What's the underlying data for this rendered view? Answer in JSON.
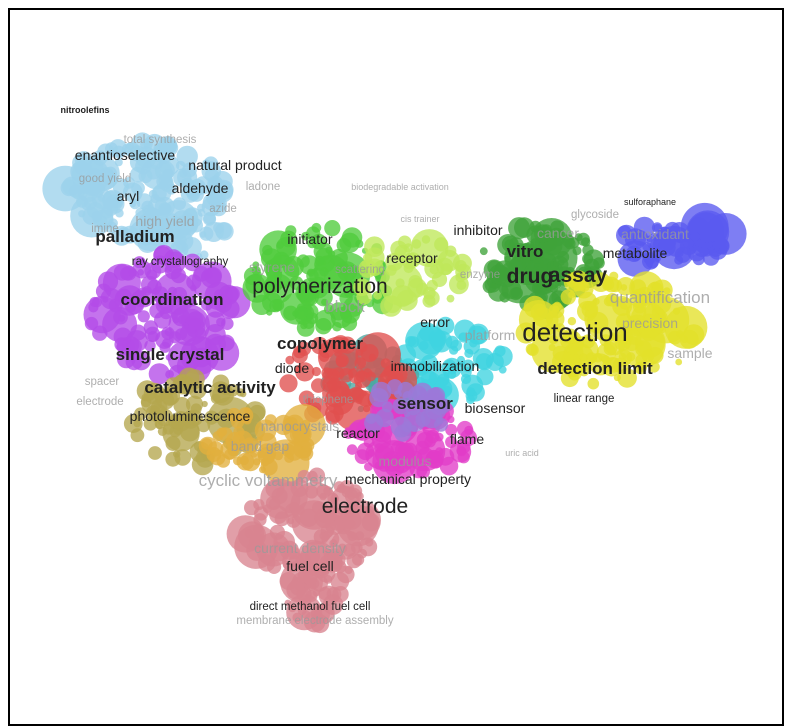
{
  "palette": {
    "light_blue": "#9cd2ec",
    "blue": "#5a5af0",
    "purple": "#b44ce8",
    "green": "#4fcc3c",
    "dark_green": "#3fa33a",
    "lime": "#bfe85a",
    "yellow": "#e3e02a",
    "cyan": "#3fd3e0",
    "magenta": "#e23cc8",
    "red": "#e0504e",
    "olive": "#b5a74e",
    "orange": "#e2b03e",
    "pink": "#d98490",
    "teal": "#4aa8a2",
    "violet": "#9c78d8"
  },
  "labels": [
    {
      "text": "nitroolefins",
      "cluster": "light_blue",
      "size": "xs",
      "weight": "bold"
    },
    {
      "text": "total synthesis",
      "cluster": "light_blue",
      "size": "s",
      "faded": true
    },
    {
      "text": "enantioselective",
      "cluster": "light_blue",
      "size": "m"
    },
    {
      "text": "natural product",
      "cluster": "light_blue",
      "size": "m"
    },
    {
      "text": "good yield",
      "cluster": "light_blue",
      "size": "s",
      "faded": true
    },
    {
      "text": "aldehyde",
      "cluster": "light_blue",
      "size": "m"
    },
    {
      "text": "aryl",
      "cluster": "light_blue",
      "size": "m"
    },
    {
      "text": "ladone",
      "cluster": "light_blue",
      "size": "s",
      "faded": true
    },
    {
      "text": "azide",
      "cluster": "light_blue",
      "size": "s",
      "faded": true
    },
    {
      "text": "biodegradable activation",
      "cluster": "lime",
      "size": "xs",
      "faded": true
    },
    {
      "text": "high yield",
      "cluster": "light_blue",
      "size": "m",
      "faded": true
    },
    {
      "text": "imine",
      "cluster": "light_blue",
      "size": "s",
      "faded": true
    },
    {
      "text": "palladium",
      "cluster": "purple",
      "size": "l",
      "weight": "bold"
    },
    {
      "text": "ray crystallography",
      "cluster": "purple",
      "size": "s"
    },
    {
      "text": "initiator",
      "cluster": "green",
      "size": "m"
    },
    {
      "text": "cis trainer",
      "cluster": "lime",
      "size": "xs",
      "faded": true
    },
    {
      "text": "glycoside",
      "cluster": "yellow",
      "size": "s",
      "faded": true
    },
    {
      "text": "sulforaphane",
      "cluster": "blue",
      "size": "xs"
    },
    {
      "text": "inhibitor",
      "cluster": "dark_green",
      "size": "m"
    },
    {
      "text": "cancer",
      "cluster": "dark_green",
      "size": "m",
      "faded": true
    },
    {
      "text": "antioxidant",
      "cluster": "blue",
      "size": "m",
      "faded": true
    },
    {
      "text": "vitro",
      "cluster": "dark_green",
      "size": "l",
      "weight": "bold"
    },
    {
      "text": "metabolite",
      "cluster": "yellow",
      "size": "m"
    },
    {
      "text": "receptor",
      "cluster": "lime",
      "size": "m"
    },
    {
      "text": "styrene",
      "cluster": "green",
      "size": "m",
      "faded": true
    },
    {
      "text": "scattering",
      "cluster": "green",
      "size": "s",
      "faded": true
    },
    {
      "text": "enzyme",
      "cluster": "dark_green",
      "size": "s",
      "faded": true
    },
    {
      "text": "drug",
      "cluster": "dark_green",
      "size": "xl",
      "weight": "bold"
    },
    {
      "text": "assay",
      "cluster": "dark_green",
      "size": "xl",
      "weight": "bold"
    },
    {
      "text": "quantification",
      "cluster": "yellow",
      "size": "l",
      "faded": true
    },
    {
      "text": "polymerization",
      "cluster": "green",
      "size": "xl"
    },
    {
      "text": "coordination",
      "cluster": "purple",
      "size": "l",
      "weight": "bold"
    },
    {
      "text": "block",
      "cluster": "green",
      "size": "l",
      "faded": true
    },
    {
      "text": "error",
      "cluster": "magenta",
      "size": "m"
    },
    {
      "text": "platform",
      "cluster": "cyan",
      "size": "m",
      "faded": true
    },
    {
      "text": "precision",
      "cluster": "yellow",
      "size": "m",
      "faded": true
    },
    {
      "text": "detection",
      "cluster": "yellow",
      "size": "xxl"
    },
    {
      "text": "copolymer",
      "cluster": "green",
      "size": "l",
      "weight": "bold"
    },
    {
      "text": "single crystal",
      "cluster": "purple",
      "size": "l",
      "weight": "bold"
    },
    {
      "text": "sample",
      "cluster": "yellow",
      "size": "m",
      "faded": true
    },
    {
      "text": "diode",
      "cluster": "red",
      "size": "m"
    },
    {
      "text": "immobilization",
      "cluster": "cyan",
      "size": "m"
    },
    {
      "text": "detection limit",
      "cluster": "yellow",
      "size": "l",
      "weight": "bold"
    },
    {
      "text": "spacer",
      "cluster": "olive",
      "size": "s",
      "faded": true
    },
    {
      "text": "catalytic activity",
      "cluster": "olive",
      "size": "l",
      "weight": "bold"
    },
    {
      "text": "electrode",
      "cluster": "olive",
      "size": "s",
      "faded": true
    },
    {
      "text": "linear range",
      "cluster": "yellow",
      "size": "s"
    },
    {
      "text": "thiophene",
      "cluster": "red",
      "size": "s",
      "faded": true
    },
    {
      "text": "sensor",
      "cluster": "magenta",
      "size": "l",
      "weight": "bold"
    },
    {
      "text": "biosensor",
      "cluster": "cyan",
      "size": "m"
    },
    {
      "text": "photoluminescence",
      "cluster": "orange",
      "size": "m"
    },
    {
      "text": "nanocrystals",
      "cluster": "orange",
      "size": "m",
      "faded": true
    },
    {
      "text": "reactor",
      "cluster": "red",
      "size": "m"
    },
    {
      "text": "band gap",
      "cluster": "orange",
      "size": "m",
      "faded": true
    },
    {
      "text": "flame",
      "cluster": "magenta",
      "size": "m"
    },
    {
      "text": "uric acid",
      "cluster": "cyan",
      "size": "xs",
      "faded": true
    },
    {
      "text": "modulus",
      "cluster": "magenta",
      "size": "m",
      "faded": true
    },
    {
      "text": "cyclic voltammetry",
      "cluster": "pink",
      "size": "l",
      "faded": true
    },
    {
      "text": "mechanical property",
      "cluster": "magenta",
      "size": "m"
    },
    {
      "text": "electrode",
      "cluster": "pink",
      "size": "xl"
    },
    {
      "text": "current density",
      "cluster": "pink",
      "size": "m",
      "faded": true
    },
    {
      "text": "fuel cell",
      "cluster": "pink",
      "size": "m"
    },
    {
      "text": "direct methanol fuel cell",
      "cluster": "pink",
      "size": "s"
    },
    {
      "text": "membrane electrode assembly",
      "cluster": "pink",
      "size": "s",
      "faded": true
    }
  ]
}
